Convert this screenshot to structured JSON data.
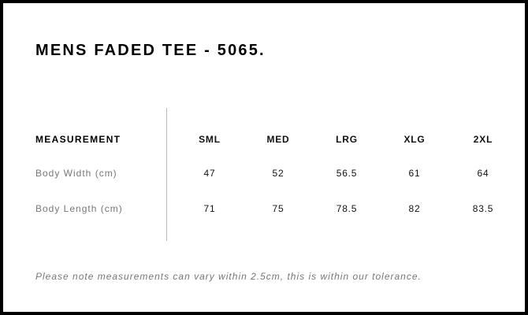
{
  "title": "MENS FADED TEE - 5065.",
  "table": {
    "header": [
      "MEASUREMENT",
      "SML",
      "MED",
      "LRG",
      "XLG",
      "2XL"
    ],
    "rows": [
      {
        "label": "Body Width (cm)",
        "values": [
          "47",
          "52",
          "56.5",
          "61",
          "64"
        ]
      },
      {
        "label": "Body Length (cm)",
        "values": [
          "71",
          "75",
          "78.5",
          "82",
          "83.5"
        ]
      }
    ]
  },
  "note": "Please note measurements can vary within 2.5cm, this is within our tolerance."
}
